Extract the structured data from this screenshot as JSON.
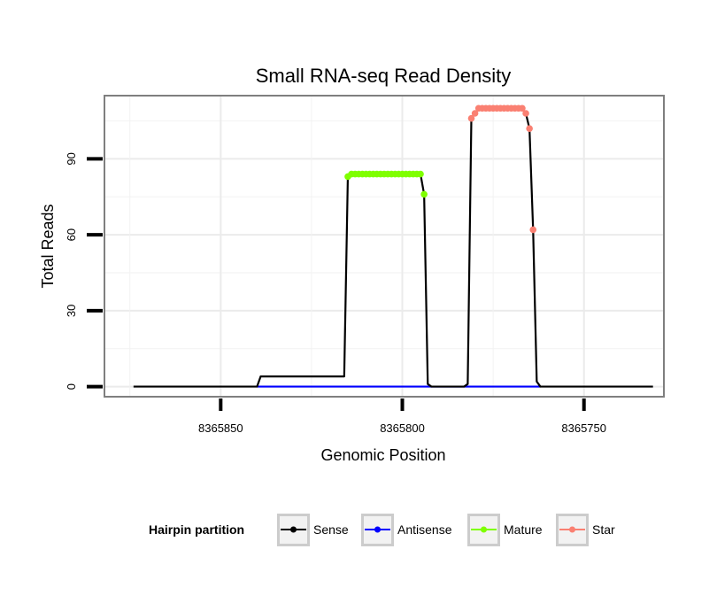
{
  "chart_data": {
    "type": "line",
    "title": "Small RNA-seq Read Density",
    "xlabel": "Genomic Position",
    "ylabel": "Total Reads",
    "x_reversed": true,
    "xlim": [
      8365882,
      8365728
    ],
    "ylim": [
      -4,
      115
    ],
    "x_ticks": [
      8365850,
      8365800,
      8365750
    ],
    "x_tick_labels": [
      "8365850",
      "8365800",
      "8365750"
    ],
    "y_ticks": [
      0,
      30,
      60,
      90
    ],
    "y_tick_labels": [
      "0",
      "30",
      "60",
      "90"
    ],
    "grid": true,
    "legend": {
      "title": "Hairpin partition",
      "position": "bottom",
      "entries": [
        {
          "label": "Sense",
          "color": "#000000"
        },
        {
          "label": "Antisense",
          "color": "#0000ff"
        },
        {
          "label": "Mature",
          "color": "#7fff00"
        },
        {
          "label": "Star",
          "color": "#fa8072"
        }
      ]
    },
    "series": [
      {
        "name": "Sense",
        "color": "#000000",
        "points": [
          [
            8365874,
            0
          ],
          [
            8365840,
            0
          ],
          [
            8365839,
            4
          ],
          [
            8365837,
            4
          ],
          [
            8365817,
            4
          ],
          [
            8365816,
            4
          ],
          [
            8365815,
            83
          ],
          [
            8365814,
            84
          ],
          [
            8365795,
            84
          ],
          [
            8365794,
            76
          ],
          [
            8365793,
            1
          ],
          [
            8365792,
            0
          ],
          [
            8365783,
            0
          ],
          [
            8365782,
            1
          ],
          [
            8365781,
            106
          ],
          [
            8365780,
            108
          ],
          [
            8365779,
            110
          ],
          [
            8365767,
            110
          ],
          [
            8365766,
            108
          ],
          [
            8365765,
            102
          ],
          [
            8365764,
            62
          ],
          [
            8365763,
            2
          ],
          [
            8365762,
            0
          ],
          [
            8365731,
            0
          ]
        ]
      },
      {
        "name": "Antisense",
        "color": "#0000ff",
        "points": [
          [
            8365840,
            0
          ],
          [
            8365762,
            0
          ]
        ]
      },
      {
        "name": "Mature",
        "color": "#7fff00",
        "points": [
          [
            8365815,
            83
          ],
          [
            8365814,
            84
          ],
          [
            8365813,
            84
          ],
          [
            8365812,
            84
          ],
          [
            8365811,
            84
          ],
          [
            8365810,
            84
          ],
          [
            8365809,
            84
          ],
          [
            8365808,
            84
          ],
          [
            8365807,
            84
          ],
          [
            8365806,
            84
          ],
          [
            8365805,
            84
          ],
          [
            8365804,
            84
          ],
          [
            8365803,
            84
          ],
          [
            8365802,
            84
          ],
          [
            8365801,
            84
          ],
          [
            8365800,
            84
          ],
          [
            8365799,
            84
          ],
          [
            8365798,
            84
          ],
          [
            8365797,
            84
          ],
          [
            8365796,
            84
          ],
          [
            8365795,
            84
          ],
          [
            8365794,
            76
          ]
        ]
      },
      {
        "name": "Star",
        "color": "#fa8072",
        "points": [
          [
            8365781,
            106
          ],
          [
            8365780,
            108
          ],
          [
            8365779,
            110
          ],
          [
            8365778,
            110
          ],
          [
            8365777,
            110
          ],
          [
            8365776,
            110
          ],
          [
            8365775,
            110
          ],
          [
            8365774,
            110
          ],
          [
            8365773,
            110
          ],
          [
            8365772,
            110
          ],
          [
            8365771,
            110
          ],
          [
            8365770,
            110
          ],
          [
            8365769,
            110
          ],
          [
            8365768,
            110
          ],
          [
            8365767,
            110
          ],
          [
            8365766,
            108
          ],
          [
            8365765,
            102
          ],
          [
            8365764,
            62
          ]
        ]
      }
    ]
  }
}
